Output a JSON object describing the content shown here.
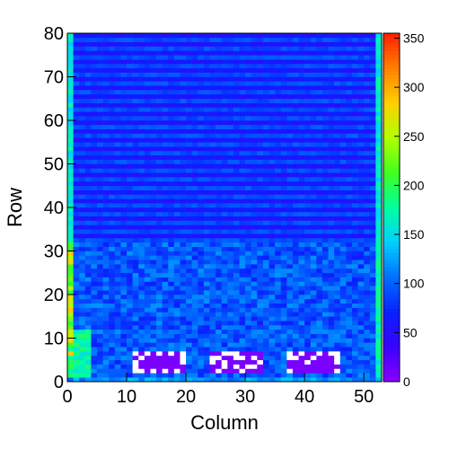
{
  "chart_data": {
    "type": "heatmap",
    "title": "",
    "xlabel": "Column",
    "ylabel": "Row",
    "x_range": [
      0,
      53
    ],
    "y_range": [
      0,
      80
    ],
    "x_ticks": [
      "0",
      "10",
      "20",
      "30",
      "40",
      "50"
    ],
    "y_ticks": [
      "0",
      "10",
      "20",
      "30",
      "40",
      "50",
      "60",
      "70",
      "80"
    ],
    "z_range": [
      0,
      355
    ],
    "colorbar_ticks": [
      "0",
      "50",
      "100",
      "150",
      "200",
      "250",
      "300",
      "350"
    ],
    "colormap": [
      "#8c00ff",
      "#3a00ff",
      "#0a20ff",
      "#0070ff",
      "#00d0ff",
      "#00ffa0",
      "#40ff20",
      "#b0ff00",
      "#ffd000",
      "#ff8000",
      "#ff2000"
    ],
    "grid": false,
    "description_regions": {
      "upper_rows_y": [
        32,
        80
      ],
      "upper_value": 60,
      "lower_rows_y": [
        0,
        31
      ],
      "lower_value": 95,
      "left_edge_columns_hot": 155,
      "empty_blocks_rows": [
        2,
        6
      ]
    }
  }
}
